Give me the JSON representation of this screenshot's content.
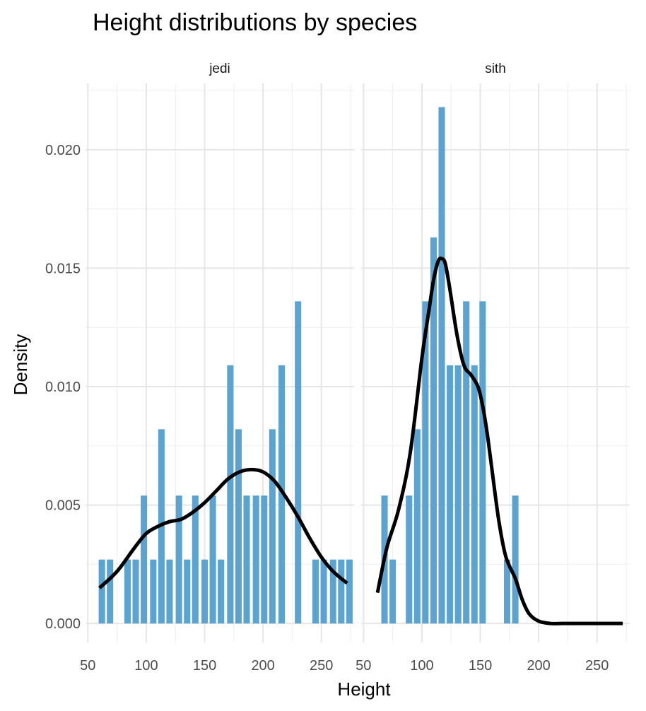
{
  "chart_data": {
    "type": "bar",
    "title": "Height distributions by species",
    "xlabel": "Height",
    "ylabel": "Density",
    "xlim": [
      48,
      278
    ],
    "ylim": [
      -0.0008,
      0.0228
    ],
    "x_ticks": [
      50,
      100,
      150,
      200,
      250
    ],
    "x_tick_labels": [
      "50",
      "100",
      "150",
      "200",
      "250"
    ],
    "y_ticks": [
      0.0,
      0.005,
      0.01,
      0.015,
      0.02
    ],
    "y_tick_labels": [
      "0.000",
      "0.005",
      "0.010",
      "0.015",
      "0.020"
    ],
    "bin_width": 7.3,
    "bar_color": "#5ba3d0",
    "density_color": "#000000",
    "grid": true,
    "panels": [
      {
        "label": "jedi",
        "bins": [
          {
            "x": 62,
            "density": 0.0027
          },
          {
            "x": 69,
            "density": 0.0027
          },
          {
            "x": 84,
            "density": 0.0027
          },
          {
            "x": 91,
            "density": 0.0027
          },
          {
            "x": 98,
            "density": 0.0054
          },
          {
            "x": 106,
            "density": 0.0027
          },
          {
            "x": 113,
            "density": 0.0082
          },
          {
            "x": 120,
            "density": 0.0027
          },
          {
            "x": 128,
            "density": 0.0054
          },
          {
            "x": 135,
            "density": 0.0027
          },
          {
            "x": 142,
            "density": 0.0054
          },
          {
            "x": 150,
            "density": 0.0027
          },
          {
            "x": 157,
            "density": 0.0054
          },
          {
            "x": 164,
            "density": 0.0027
          },
          {
            "x": 172,
            "density": 0.0109
          },
          {
            "x": 179,
            "density": 0.0082
          },
          {
            "x": 186,
            "density": 0.0054
          },
          {
            "x": 194,
            "density": 0.0054
          },
          {
            "x": 201,
            "density": 0.0054
          },
          {
            "x": 208,
            "density": 0.0082
          },
          {
            "x": 216,
            "density": 0.0109
          },
          {
            "x": 230,
            "density": 0.0136
          },
          {
            "x": 245,
            "density": 0.0027
          },
          {
            "x": 252,
            "density": 0.0027
          },
          {
            "x": 260,
            "density": 0.0027
          },
          {
            "x": 267,
            "density": 0.0027
          },
          {
            "x": 274,
            "density": 0.0027
          }
        ],
        "density_curve": {
          "x": [
            60,
            75,
            90,
            100,
            110,
            120,
            130,
            140,
            150,
            160,
            170,
            180,
            190,
            200,
            210,
            220,
            230,
            240,
            250,
            260,
            272
          ],
          "y": [
            0.0015,
            0.0022,
            0.0032,
            0.0038,
            0.0041,
            0.0043,
            0.0044,
            0.0047,
            0.0051,
            0.0056,
            0.0061,
            0.0064,
            0.0065,
            0.0064,
            0.006,
            0.0053,
            0.0045,
            0.0036,
            0.0028,
            0.0022,
            0.0017
          ]
        }
      },
      {
        "label": "sith",
        "bins": [
          {
            "x": 68,
            "density": 0.0054
          },
          {
            "x": 75,
            "density": 0.0027
          },
          {
            "x": 89,
            "density": 0.0054
          },
          {
            "x": 96,
            "density": 0.0082
          },
          {
            "x": 103,
            "density": 0.0136
          },
          {
            "x": 110,
            "density": 0.0163
          },
          {
            "x": 117,
            "density": 0.0218
          },
          {
            "x": 124,
            "density": 0.0109
          },
          {
            "x": 131,
            "density": 0.0109
          },
          {
            "x": 138,
            "density": 0.0136
          },
          {
            "x": 145,
            "density": 0.0109
          },
          {
            "x": 152,
            "density": 0.0136
          },
          {
            "x": 173,
            "density": 0.0027
          },
          {
            "x": 180,
            "density": 0.0054
          }
        ],
        "density_curve": {
          "x": [
            62,
            70,
            80,
            90,
            100,
            106,
            110,
            114,
            117,
            120,
            124,
            130,
            136,
            142,
            148,
            152,
            156,
            160,
            166,
            172,
            180,
            186,
            192,
            200,
            210,
            220,
            230,
            250,
            272
          ],
          "y": [
            0.0013,
            0.0032,
            0.0048,
            0.0072,
            0.0112,
            0.0132,
            0.0145,
            0.0153,
            0.0154,
            0.0152,
            0.0141,
            0.0122,
            0.0109,
            0.0105,
            0.01,
            0.0092,
            0.008,
            0.0065,
            0.0043,
            0.0028,
            0.0019,
            0.001,
            0.0004,
            0.0001,
            0.0,
            0.0,
            0.0,
            0.0,
            0.0
          ]
        }
      }
    ]
  }
}
